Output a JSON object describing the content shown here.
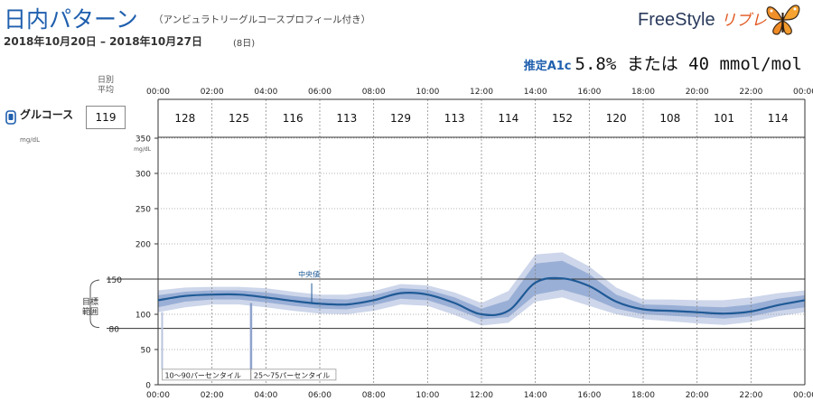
{
  "header": {
    "title": "日内パターン",
    "subtitle": "（アンビュラトリーグルコースプロフィール付き）",
    "date_range": "2018年10月20日 – 2018年10月27日",
    "days": "(8日)"
  },
  "brand": {
    "name": "FreeStyle",
    "sub": "リブレ"
  },
  "a1c": {
    "label": "推定A1c",
    "text": "5.8% または 40 mmol/mol"
  },
  "daily_avg": {
    "label_line1": "日別",
    "label_line2": "平均",
    "value": "119"
  },
  "glucose_legend": {
    "label": "グルコース",
    "unit": "mg/dL"
  },
  "colors": {
    "median": "#1f5a96",
    "band_10_90": "#cdd6ea",
    "band_25_75": "#9aafd6",
    "grid": "#888888"
  },
  "chart_data": {
    "type": "area",
    "title": "日内パターン",
    "ylabel": "mg/dL",
    "ylim": [
      0,
      350
    ],
    "xlim_hours": [
      0,
      24
    ],
    "time_ticks": [
      "00:00",
      "02:00",
      "04:00",
      "06:00",
      "08:00",
      "10:00",
      "12:00",
      "14:00",
      "16:00",
      "18:00",
      "20:00",
      "22:00",
      "00:00"
    ],
    "y_ticks": [
      0,
      50,
      100,
      150,
      200,
      250,
      300,
      350
    ],
    "y_tick_labels": [
      "0",
      "50",
      "100",
      "150",
      "200",
      "250",
      "300",
      "350"
    ],
    "target_range": {
      "low": 80,
      "high": 150,
      "low_label": "80",
      "high_label": "150",
      "label": "目標範囲"
    },
    "hourly_averages": [
      128,
      125,
      116,
      113,
      129,
      113,
      114,
      152,
      120,
      108,
      101,
      114
    ],
    "x_hours": [
      0,
      1,
      2,
      3,
      4,
      5,
      6,
      7,
      8,
      9,
      10,
      11,
      12,
      13,
      14,
      15,
      16,
      17,
      18,
      19,
      20,
      21,
      22,
      23,
      24
    ],
    "median": [
      120,
      126,
      128,
      128,
      124,
      119,
      115,
      114,
      120,
      130,
      128,
      116,
      100,
      105,
      145,
      151,
      140,
      118,
      107,
      105,
      103,
      101,
      104,
      113,
      120
    ],
    "p25": [
      110,
      118,
      121,
      121,
      117,
      112,
      108,
      107,
      113,
      122,
      120,
      108,
      93,
      96,
      128,
      135,
      124,
      108,
      100,
      98,
      96,
      94,
      97,
      105,
      110
    ],
    "p75": [
      127,
      132,
      134,
      134,
      131,
      126,
      122,
      121,
      127,
      137,
      135,
      124,
      108,
      120,
      172,
      176,
      157,
      128,
      114,
      113,
      111,
      110,
      114,
      122,
      127
    ],
    "p10": [
      103,
      110,
      114,
      114,
      110,
      105,
      101,
      100,
      105,
      114,
      112,
      99,
      84,
      88,
      118,
      124,
      112,
      100,
      93,
      90,
      87,
      85,
      89,
      97,
      103
    ],
    "p90": [
      134,
      138,
      139,
      139,
      137,
      132,
      128,
      128,
      133,
      143,
      141,
      131,
      116,
      133,
      185,
      188,
      168,
      138,
      121,
      121,
      120,
      120,
      124,
      130,
      134
    ],
    "annotations": {
      "median": "中央値",
      "band_10_90": "10～90パーセンタイル",
      "band_25_75": "25～75パーセンタイル"
    }
  }
}
